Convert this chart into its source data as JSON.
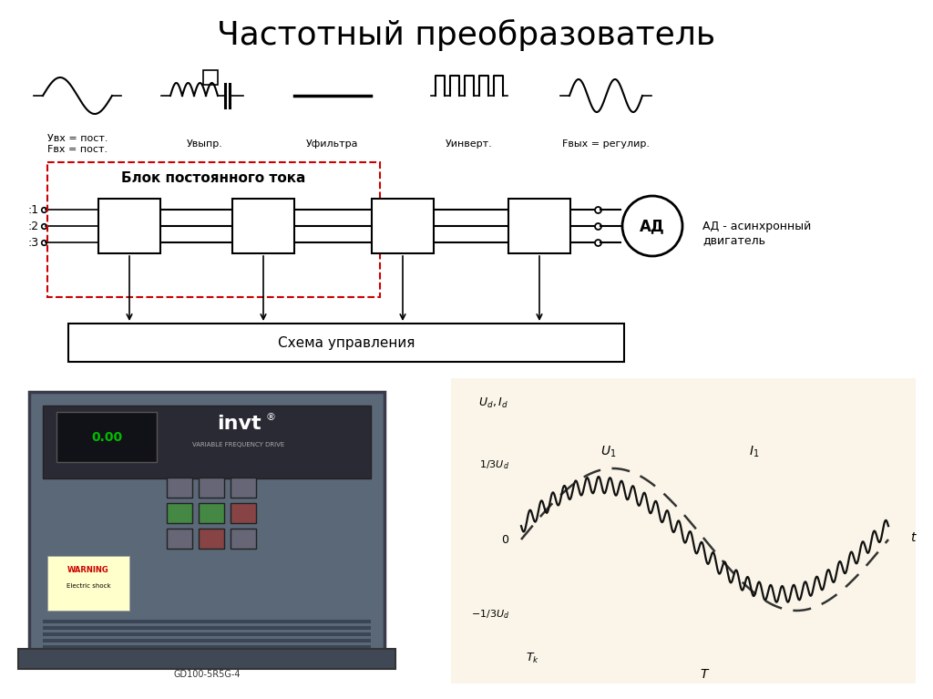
{
  "title": "Частотный преобразователь",
  "title_fontsize": 28,
  "bg_color": "#ffffff",
  "block_label": "Блок постоянного тока",
  "inputs": [
    ":1",
    ":2",
    ":3"
  ],
  "motor_label": "АД",
  "motor_note": "АД - асинхронный\nдвигатель",
  "control_label": "Схема управления",
  "dashed_color": "#cc0000",
  "line_color": "#333333",
  "light_bg": "#faf5e8"
}
